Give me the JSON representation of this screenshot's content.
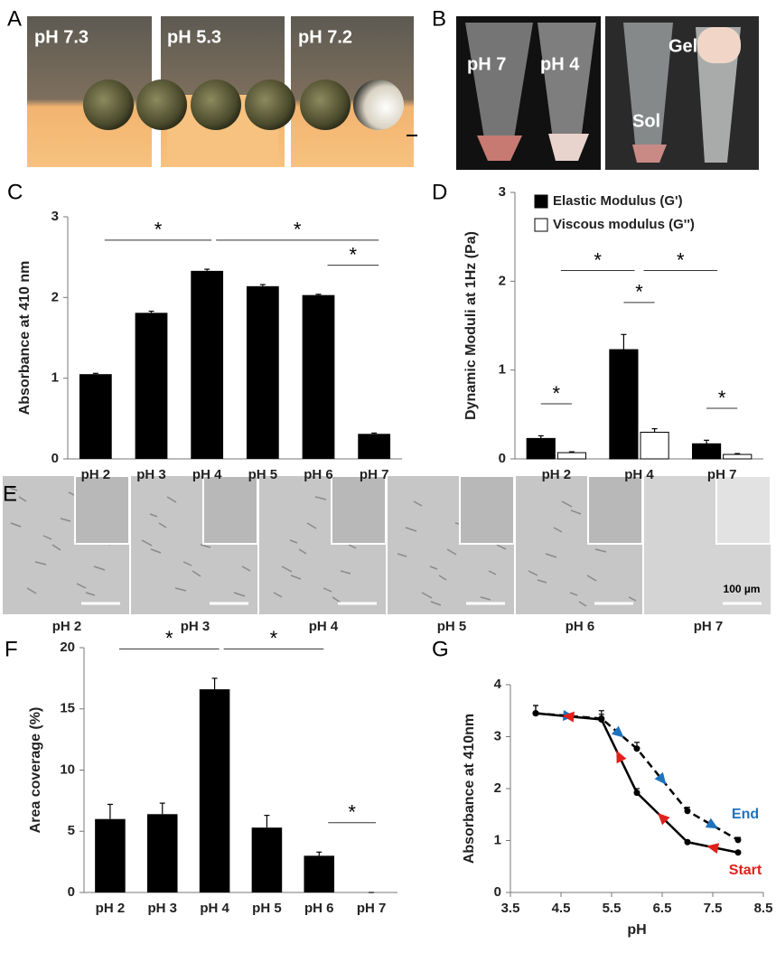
{
  "panel_labels": [
    "A",
    "B",
    "C",
    "D",
    "E",
    "F",
    "G"
  ],
  "photos_a": [
    "pH 7.3",
    "pH 5.3",
    "pH 7.2"
  ],
  "photos_b": [
    "pH 7",
    "pH 4",
    "Sol",
    "Gel"
  ],
  "photos_e": {
    "labels": [
      "pH 2",
      "pH 3",
      "pH 4",
      "pH 5",
      "pH 6",
      "pH 7"
    ],
    "scale_bar": "100 µm"
  },
  "chart_data": [
    {
      "type": "bar",
      "y_label": "Absorbance at 410 nm",
      "categories": [
        "pH 2",
        "pH 3",
        "pH 4",
        "pH 5",
        "pH 6",
        "pH 7"
      ],
      "values": [
        1.05,
        1.81,
        2.33,
        2.14,
        2.03,
        0.31
      ],
      "errors": [
        0.01,
        0.02,
        0.02,
        0.02,
        0.01,
        0.01
      ],
      "color": "#000000",
      "ylim": [
        0,
        3
      ],
      "yticks": [
        0,
        1,
        2,
        3
      ],
      "grid": false,
      "significance": [
        {
          "label": "*",
          "between": [
            0,
            2
          ]
        },
        {
          "label": "*",
          "between": [
            2,
            5
          ]
        },
        {
          "label": "*",
          "between": [
            4,
            5
          ]
        }
      ]
    },
    {
      "type": "grouped-bar",
      "y_label": "Dynamic Moduli at 1Hz (Pa)",
      "categories": [
        "pH 2",
        "pH 4",
        "pH 7"
      ],
      "series": [
        {
          "name": "Elastic Modulus (G')",
          "color": "#000000",
          "values": [
            0.23,
            1.23,
            0.17
          ],
          "errors": [
            0.03,
            0.17,
            0.04
          ]
        },
        {
          "name": "Viscous modulus (G'')",
          "color": "#ffffff",
          "values": [
            0.07,
            0.3,
            0.05
          ],
          "errors": [
            0.01,
            0.04,
            0.01
          ]
        }
      ],
      "ylim": [
        0,
        3
      ],
      "yticks": [
        0,
        1,
        2,
        3
      ],
      "grid": false,
      "legend": "top-left",
      "significance": [
        {
          "label": "*",
          "group": 0
        },
        {
          "label": "*",
          "group": 1
        },
        {
          "label": "*",
          "group": 2
        },
        {
          "label": "*",
          "between": [
            0,
            1
          ]
        },
        {
          "label": "*",
          "between": [
            1,
            2
          ]
        }
      ]
    },
    {
      "type": "bar",
      "y_label": "Area coverage (%)",
      "categories": [
        "pH 2",
        "pH 3",
        "pH 4",
        "pH 5",
        "pH 6",
        "pH 7"
      ],
      "values": [
        6.0,
        6.4,
        16.6,
        5.3,
        3.0,
        0
      ],
      "errors": [
        1.2,
        0.9,
        0.9,
        1.0,
        0.3,
        0
      ],
      "color": "#000000",
      "ylim": [
        0,
        20
      ],
      "yticks": [
        0,
        5,
        10,
        15,
        20
      ],
      "grid": false,
      "significance": [
        {
          "label": "*",
          "between": [
            0,
            2
          ]
        },
        {
          "label": "*",
          "between": [
            2,
            4
          ]
        },
        {
          "label": "*",
          "between": [
            4,
            5
          ]
        }
      ]
    },
    {
      "type": "line",
      "x_label": "pH",
      "y_label": "Absorbance at 410nm",
      "x": [
        4,
        5.3,
        6,
        7,
        8
      ],
      "series": [
        {
          "label": "End",
          "color": "#000000",
          "dash": true,
          "reverse": false,
          "arrow_color": "#1e73be",
          "values": [
            3.45,
            3.35,
            2.77,
            1.57,
            1.01
          ],
          "errors": [
            0.15,
            0.15,
            0.12,
            0.07,
            0.05
          ]
        },
        {
          "label": "Start",
          "color": "#000000",
          "dash": false,
          "reverse": true,
          "arrow_color": "#e0201b",
          "values": [
            3.45,
            3.33,
            1.92,
            0.97,
            0.77
          ],
          "errors": [
            0.15,
            0.1,
            0.08,
            0.03,
            0.02
          ]
        }
      ],
      "xlim": [
        3.5,
        8.5
      ],
      "xticks": [
        3.5,
        4.5,
        5.5,
        6.5,
        7.5,
        8.5
      ],
      "ylim": [
        0,
        4
      ],
      "yticks": [
        0,
        1,
        2,
        3,
        4
      ],
      "grid": false
    }
  ]
}
